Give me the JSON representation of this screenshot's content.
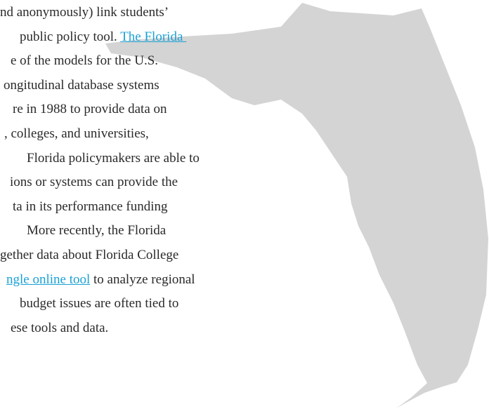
{
  "paragraph": {
    "lines": [
      [
        {
          "text": "nd anonymously) link students’",
          "link": false
        }
      ],
      [
        {
          "text": "public policy tool. ",
          "link": false
        },
        {
          "text": "The Florida ",
          "link": true
        }
      ],
      [
        {
          "text": "e of the models for the U.S.",
          "link": false
        }
      ],
      [
        {
          "text": "ongitudinal database systems",
          "link": false
        }
      ],
      [
        {
          "text": "re in 1988 to provide data on",
          "link": false
        }
      ],
      [
        {
          "text": ", colleges, and universities,",
          "link": false
        }
      ],
      [
        {
          "text": "Florida policymakers are able to",
          "link": false
        }
      ],
      [
        {
          "text": "ions or systems can provide the",
          "link": false
        }
      ],
      [
        {
          "text": "ta in its performance funding",
          "link": false
        }
      ],
      [
        {
          "text": "More recently, the Florida",
          "link": false
        }
      ],
      [
        {
          "text": "gether data about Florida College",
          "link": false
        }
      ],
      [
        {
          "text": "ngle online tool",
          "link": true
        },
        {
          "text": " to analyze regional",
          "link": false
        }
      ],
      [
        {
          "text": "budget issues are often tied to",
          "link": false
        }
      ],
      [
        {
          "text": "ese tools and data.",
          "link": false
        }
      ]
    ]
  }
}
